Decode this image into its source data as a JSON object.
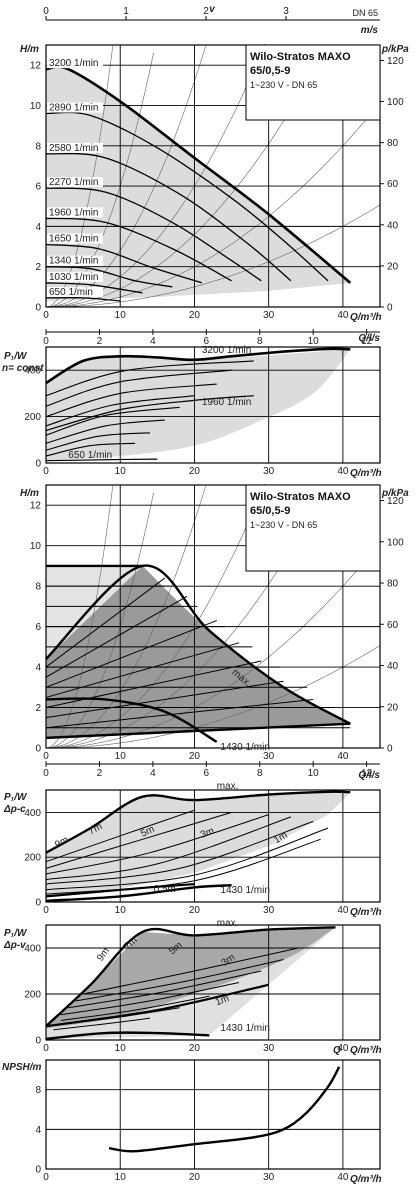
{
  "chart_data": [
    {
      "type": "line",
      "top_axis": {
        "label": "v",
        "unit": "m/s",
        "ticks": [
          "0",
          "1",
          "2",
          "3"
        ],
        "right_label": "DN 65"
      },
      "title": "Wilo-Stratos MAXO",
      "model": "65/0,5-9",
      "subtitle": "1~230 V - DN 65",
      "ylabel": "H/m",
      "ylabel_right": "p/kPa",
      "xlabel": "Q/m³/h",
      "xlabel_top": "Q/l/s",
      "xlim": [
        0,
        45
      ],
      "ylim": [
        0,
        13
      ],
      "x_ticks": [
        "0",
        "10",
        "20",
        "30",
        "40"
      ],
      "y_ticks": [
        "0",
        "2",
        "4",
        "6",
        "8",
        "10",
        "12"
      ],
      "y_right_ticks": [
        "0",
        "20",
        "40",
        "60",
        "80",
        "100",
        "120"
      ],
      "ls_ticks": [
        "0",
        "2",
        "4",
        "6",
        "8",
        "10",
        "12"
      ],
      "series": [
        {
          "name": "3200 1/min",
          "values": [
            [
              0,
              11.8
            ],
            [
              3,
              11.8
            ],
            [
              10,
              10.2
            ],
            [
              20,
              7.4
            ],
            [
              30,
              4.6
            ],
            [
              41,
              1.2
            ]
          ]
        },
        {
          "name": "2890 1/min",
          "values": [
            [
              0,
              9.6
            ],
            [
              6,
              9.5
            ],
            [
              15,
              7.9
            ],
            [
              25,
              5.4
            ],
            [
              32,
              3.3
            ],
            [
              38,
              1.3
            ]
          ]
        },
        {
          "name": "2580 1/min",
          "values": [
            [
              0,
              7.6
            ],
            [
              8,
              7.4
            ],
            [
              18,
              5.6
            ],
            [
              27,
              3.2
            ],
            [
              33,
              1.3
            ]
          ]
        },
        {
          "name": "2270 1/min",
          "values": [
            [
              0,
              5.9
            ],
            [
              8,
              5.7
            ],
            [
              17,
              4.2
            ],
            [
              25,
              2.3
            ],
            [
              29,
              1.3
            ]
          ]
        },
        {
          "name": "1960 1/min",
          "values": [
            [
              0,
              4.4
            ],
            [
              8,
              4.2
            ],
            [
              17,
              2.9
            ],
            [
              25,
              1.3
            ]
          ]
        },
        {
          "name": "1650 1/min",
          "values": [
            [
              0,
              3.1
            ],
            [
              7,
              2.9
            ],
            [
              14,
              2.0
            ],
            [
              21,
              1.2
            ]
          ]
        },
        {
          "name": "1340 1/min",
          "values": [
            [
              0,
              2.0
            ],
            [
              6,
              1.9
            ],
            [
              12,
              1.3
            ],
            [
              17,
              1.0
            ]
          ]
        },
        {
          "name": "1030 1/min",
          "values": [
            [
              0,
              1.2
            ],
            [
              6,
              1.1
            ],
            [
              13,
              0.7
            ]
          ]
        },
        {
          "name": "650 1/min",
          "values": [
            [
              0,
              0.45
            ],
            [
              5,
              0.45
            ],
            [
              10,
              0.3
            ]
          ]
        }
      ]
    },
    {
      "type": "line",
      "ylabel": "P₁/W",
      "ylabel_extra": "n= const",
      "xlabel": "Q/m³/h",
      "xlim": [
        0,
        45
      ],
      "ylim": [
        0,
        500
      ],
      "x_ticks": [
        "0",
        "10",
        "20",
        "30",
        "40"
      ],
      "y_ticks": [
        "0",
        "200",
        "400"
      ],
      "series": [
        {
          "name": "3200 1/min",
          "values": [
            [
              0,
              345
            ],
            [
              5,
              440
            ],
            [
              10,
              460
            ],
            [
              15,
              455
            ],
            [
              20,
              445
            ],
            [
              25,
              460
            ],
            [
              32,
              480
            ],
            [
              38,
              492
            ],
            [
              41,
              490
            ]
          ]
        },
        {
          "name": "1960 1/min",
          "values": [
            [
              0,
              140
            ],
            [
              10,
              230
            ],
            [
              20,
              270
            ],
            [
              28,
              290
            ]
          ]
        },
        {
          "name": "650 1/min",
          "values": [
            [
              0,
              10
            ],
            [
              10,
              15
            ],
            [
              15,
              17
            ]
          ]
        }
      ],
      "envelope": [
        [
          0,
          345
        ],
        [
          5,
          440
        ],
        [
          10,
          460
        ],
        [
          20,
          445
        ],
        [
          41,
          490
        ],
        [
          36,
          300
        ],
        [
          28,
          170
        ],
        [
          20,
          75
        ],
        [
          10,
          30
        ],
        [
          0,
          10
        ]
      ]
    },
    {
      "type": "line",
      "title": "Wilo-Stratos MAXO",
      "model": "65/0,5-9",
      "subtitle": "1~230 V - DN 65",
      "ylabel": "H/m",
      "ylabel_right": "p/kPa",
      "xlabel": "Q/m³/h",
      "xlim": [
        0,
        45
      ],
      "ylim": [
        0,
        13
      ],
      "x_ticks": [
        "0",
        "10",
        "20",
        "30",
        "40"
      ],
      "y_ticks": [
        "0",
        "2",
        "4",
        "6",
        "8",
        "10",
        "12"
      ],
      "y_right_ticks": [
        "0",
        "20",
        "40",
        "60",
        "80",
        "100",
        "120"
      ],
      "annotations": [
        "max.",
        "1430 1/min"
      ],
      "series": [
        {
          "name": "max.",
          "values": [
            [
              0,
              4.4
            ],
            [
              13,
              9.0
            ],
            [
              22,
              5.8
            ],
            [
              32,
              3.0
            ],
            [
              41,
              1.2
            ]
          ]
        },
        {
          "name": "1430 1/min",
          "values": [
            [
              0,
              2.4
            ],
            [
              8,
              2.4
            ],
            [
              16,
              1.8
            ],
            [
              23,
              0.3
            ]
          ]
        }
      ],
      "dpc_envelope": [
        [
          0,
          9.0
        ],
        [
          13,
          9.0
        ],
        [
          41,
          1.2
        ],
        [
          41,
          1.2
        ],
        [
          0,
          0.5
        ]
      ],
      "dpv_region": [
        [
          0,
          4.4
        ],
        [
          13,
          9.0
        ],
        [
          22,
          5.8
        ],
        [
          32,
          3.0
        ],
        [
          41,
          1.2
        ],
        [
          23,
          0.5
        ],
        [
          0,
          0.5
        ]
      ]
    },
    {
      "type": "line",
      "ylabel": "P₁/W",
      "ylabel_extra": "Δp-c",
      "xlabel": "Q/m³/h",
      "xlim": [
        0,
        45
      ],
      "ylim": [
        0,
        500
      ],
      "x_ticks": [
        "0",
        "10",
        "20",
        "30",
        "40"
      ],
      "y_ticks": [
        "0",
        "200",
        "400"
      ],
      "ls_ticks": [
        "0",
        "2",
        "4",
        "6",
        "8",
        "10",
        "12"
      ],
      "line_labels": [
        "max.",
        "9m",
        "7m",
        "5m",
        "3m",
        "1m",
        "0,5m",
        "1430 1/min"
      ],
      "series": [
        {
          "name": "max.",
          "values": [
            [
              0,
              220
            ],
            [
              6,
              330
            ],
            [
              13,
              470
            ],
            [
              20,
              455
            ],
            [
              30,
              480
            ],
            [
              38,
              492
            ],
            [
              41,
              490
            ]
          ]
        },
        {
          "name": "1430 1/min",
          "values": [
            [
              0,
              5
            ],
            [
              10,
              25
            ],
            [
              20,
              65
            ],
            [
              25,
              75
            ]
          ]
        }
      ]
    },
    {
      "type": "line",
      "ylabel": "P₁/W",
      "ylabel_extra": "Δp-v",
      "xlabel": "Q/m³/h",
      "xlim": [
        0,
        45
      ],
      "ylim": [
        0,
        500
      ],
      "x_ticks": [
        "0",
        "10",
        "20",
        "30",
        "40"
      ],
      "y_ticks": [
        "0",
        "200",
        "400"
      ],
      "line_labels": [
        "max.",
        "9m",
        "7m",
        "5m",
        "3m",
        "1m",
        "1430 1/min"
      ],
      "series": [
        {
          "name": "max.",
          "values": [
            [
              0,
              60
            ],
            [
              6,
              240
            ],
            [
              13,
              470
            ],
            [
              20,
              455
            ],
            [
              30,
              480
            ],
            [
              39,
              490
            ]
          ]
        },
        {
          "name": "1430 1/min",
          "values": [
            [
              0,
              5
            ],
            [
              8,
              30
            ],
            [
              15,
              30
            ],
            [
              22,
              20
            ]
          ]
        }
      ]
    },
    {
      "type": "line",
      "ylabel": "NPSH/m",
      "xlabel": "Q/m³/h",
      "xlim": [
        0,
        45
      ],
      "ylim": [
        0,
        11
      ],
      "x_ticks": [
        "0",
        "10",
        "20",
        "30",
        "40"
      ],
      "y_ticks": [
        "0",
        "4",
        "8"
      ],
      "series": [
        {
          "name": "",
          "values": [
            [
              8.5,
              2.1
            ],
            [
              12,
              1.8
            ],
            [
              20,
              2.5
            ],
            [
              28,
              3.2
            ],
            [
              32,
              4.0
            ],
            [
              35,
              5.6
            ],
            [
              38,
              8.3
            ],
            [
              39.5,
              10.3
            ]
          ]
        }
      ]
    }
  ]
}
